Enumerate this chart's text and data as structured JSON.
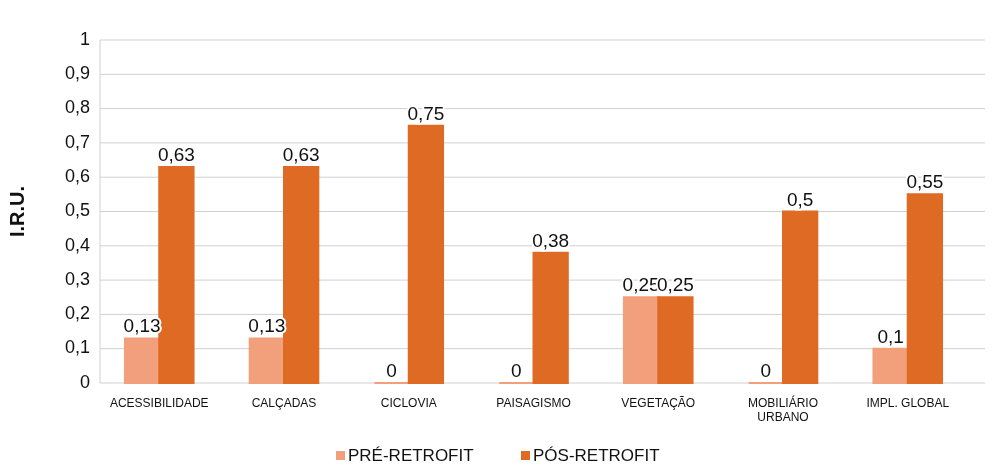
{
  "chart_data": {
    "type": "bar",
    "ylabel": "I.R.U.",
    "categories": [
      "ACESSIBILIDADE",
      "CALÇADAS",
      "CICLOVIA",
      "PAISAGISMO",
      "VEGETAÇÃO",
      "MOBILIÁRIO URBANO",
      "IMPL. GLOBAL"
    ],
    "series": [
      {
        "name": "PRÉ-RETROFIT",
        "color": "#f2a07c",
        "values": [
          0.13,
          0.13,
          0,
          0,
          0.25,
          0,
          0.1
        ],
        "value_labels": [
          "0,13",
          "0,13",
          "0",
          "0",
          "0,25",
          "0",
          "0,1"
        ]
      },
      {
        "name": "PÓS-RETROFIT",
        "color": "#de6a24",
        "values": [
          0.63,
          0.63,
          0.75,
          0.38,
          0.25,
          0.5,
          0.55
        ],
        "value_labels": [
          "0,63",
          "0,63",
          "0,75",
          "0,38",
          "0,25",
          "0,5",
          "0,55"
        ]
      }
    ],
    "ylim": [
      0,
      1
    ],
    "yticks": [
      {
        "value": 0,
        "label": "0"
      },
      {
        "value": 0.1,
        "label": "0,1"
      },
      {
        "value": 0.2,
        "label": "0,2"
      },
      {
        "value": 0.3,
        "label": "0,3"
      },
      {
        "value": 0.4,
        "label": "0,4"
      },
      {
        "value": 0.5,
        "label": "0,5"
      },
      {
        "value": 0.6,
        "label": "0,6"
      },
      {
        "value": 0.7,
        "label": "0,7"
      },
      {
        "value": 0.8,
        "label": "0,8"
      },
      {
        "value": 0.9,
        "label": "0,9"
      },
      {
        "value": 1,
        "label": "1"
      }
    ],
    "grid": "y",
    "legend": "bottom"
  }
}
